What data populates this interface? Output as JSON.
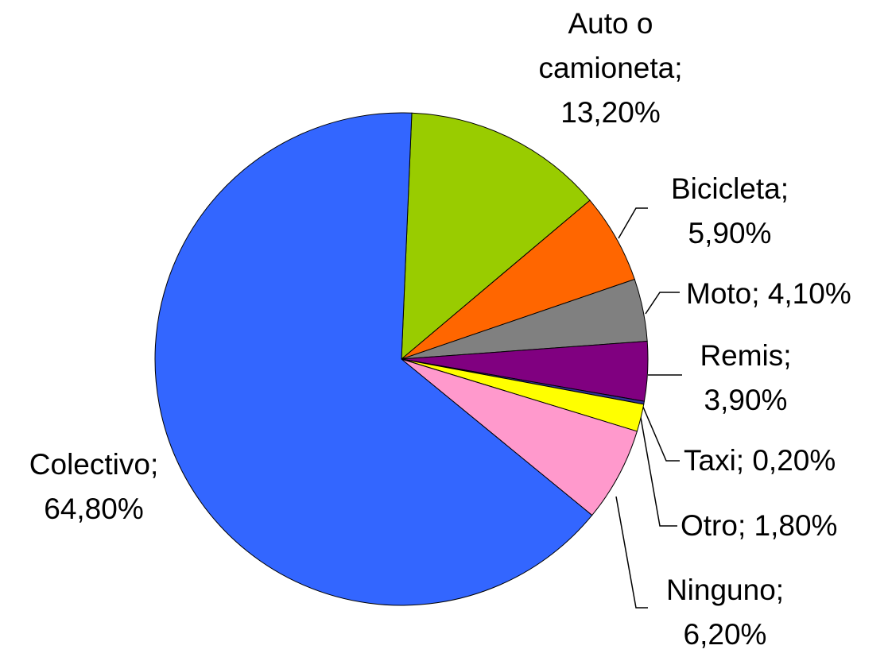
{
  "chart_data": {
    "type": "pie",
    "categories": [
      "Auto o camioneta;",
      "Bicicleta;",
      "Moto;",
      "Remis;",
      "Taxi;",
      "Otro;",
      "Ninguno;",
      "Colectivo;"
    ],
    "values": [
      13.2,
      5.9,
      4.1,
      3.9,
      0.2,
      1.8,
      6.2,
      64.8
    ],
    "value_labels": [
      "13,20%",
      "5,90%",
      "4,10%",
      "3,90%",
      "0,20%",
      "1,80%",
      "6,20%",
      "64,80%"
    ],
    "colors": [
      "#99cc00",
      "#ff6600",
      "#808080",
      "#800080",
      "#333399",
      "#ffff00",
      "#ff99cc",
      "#3366ff"
    ]
  }
}
